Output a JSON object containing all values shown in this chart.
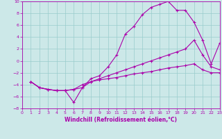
{
  "xlabel": "Windchill (Refroidissement éolien,°C)",
  "background_color": "#cce8e8",
  "grid_color": "#99cccc",
  "line_color": "#aa00aa",
  "xlim": [
    0,
    23
  ],
  "ylim": [
    -8,
    10
  ],
  "xticks": [
    0,
    1,
    2,
    3,
    4,
    5,
    6,
    7,
    8,
    9,
    10,
    11,
    12,
    13,
    14,
    15,
    16,
    17,
    18,
    19,
    20,
    21,
    22,
    23
  ],
  "yticks": [
    -8,
    -6,
    -4,
    -2,
    0,
    2,
    4,
    6,
    8,
    10
  ],
  "line1_x": [
    1,
    2,
    3,
    4,
    5,
    6,
    7,
    8,
    9,
    10,
    11,
    12,
    13,
    14,
    15,
    16,
    17,
    18,
    19,
    20,
    21,
    22,
    23
  ],
  "line1_y": [
    -3.5,
    -4.5,
    -4.8,
    -5.0,
    -5.0,
    -7.0,
    -4.5,
    -3.0,
    -2.5,
    -1.0,
    1.0,
    4.5,
    5.8,
    7.8,
    9.0,
    9.5,
    10.0,
    8.5,
    8.5,
    6.5,
    3.5,
    -0.5,
    3.0
  ],
  "line2_x": [
    1,
    2,
    3,
    4,
    5,
    6,
    7,
    8,
    9,
    10,
    11,
    12,
    13,
    14,
    15,
    16,
    17,
    18,
    19,
    20,
    21,
    22,
    23
  ],
  "line2_y": [
    -3.5,
    -4.5,
    -4.8,
    -5.0,
    -5.0,
    -4.8,
    -4.5,
    -3.5,
    -3.0,
    -2.5,
    -2.0,
    -1.5,
    -1.0,
    -0.5,
    0.0,
    0.5,
    1.0,
    1.5,
    2.0,
    3.5,
    1.0,
    -1.0,
    -1.5
  ],
  "line3_x": [
    1,
    2,
    3,
    4,
    5,
    6,
    7,
    8,
    9,
    10,
    11,
    12,
    13,
    14,
    15,
    16,
    17,
    18,
    19,
    20,
    21,
    22,
    23
  ],
  "line3_y": [
    -3.5,
    -4.5,
    -4.8,
    -5.0,
    -5.0,
    -4.8,
    -4.0,
    -3.5,
    -3.2,
    -3.0,
    -2.8,
    -2.5,
    -2.2,
    -2.0,
    -1.8,
    -1.5,
    -1.2,
    -1.0,
    -0.8,
    -0.5,
    -1.5,
    -2.0,
    -2.0
  ]
}
